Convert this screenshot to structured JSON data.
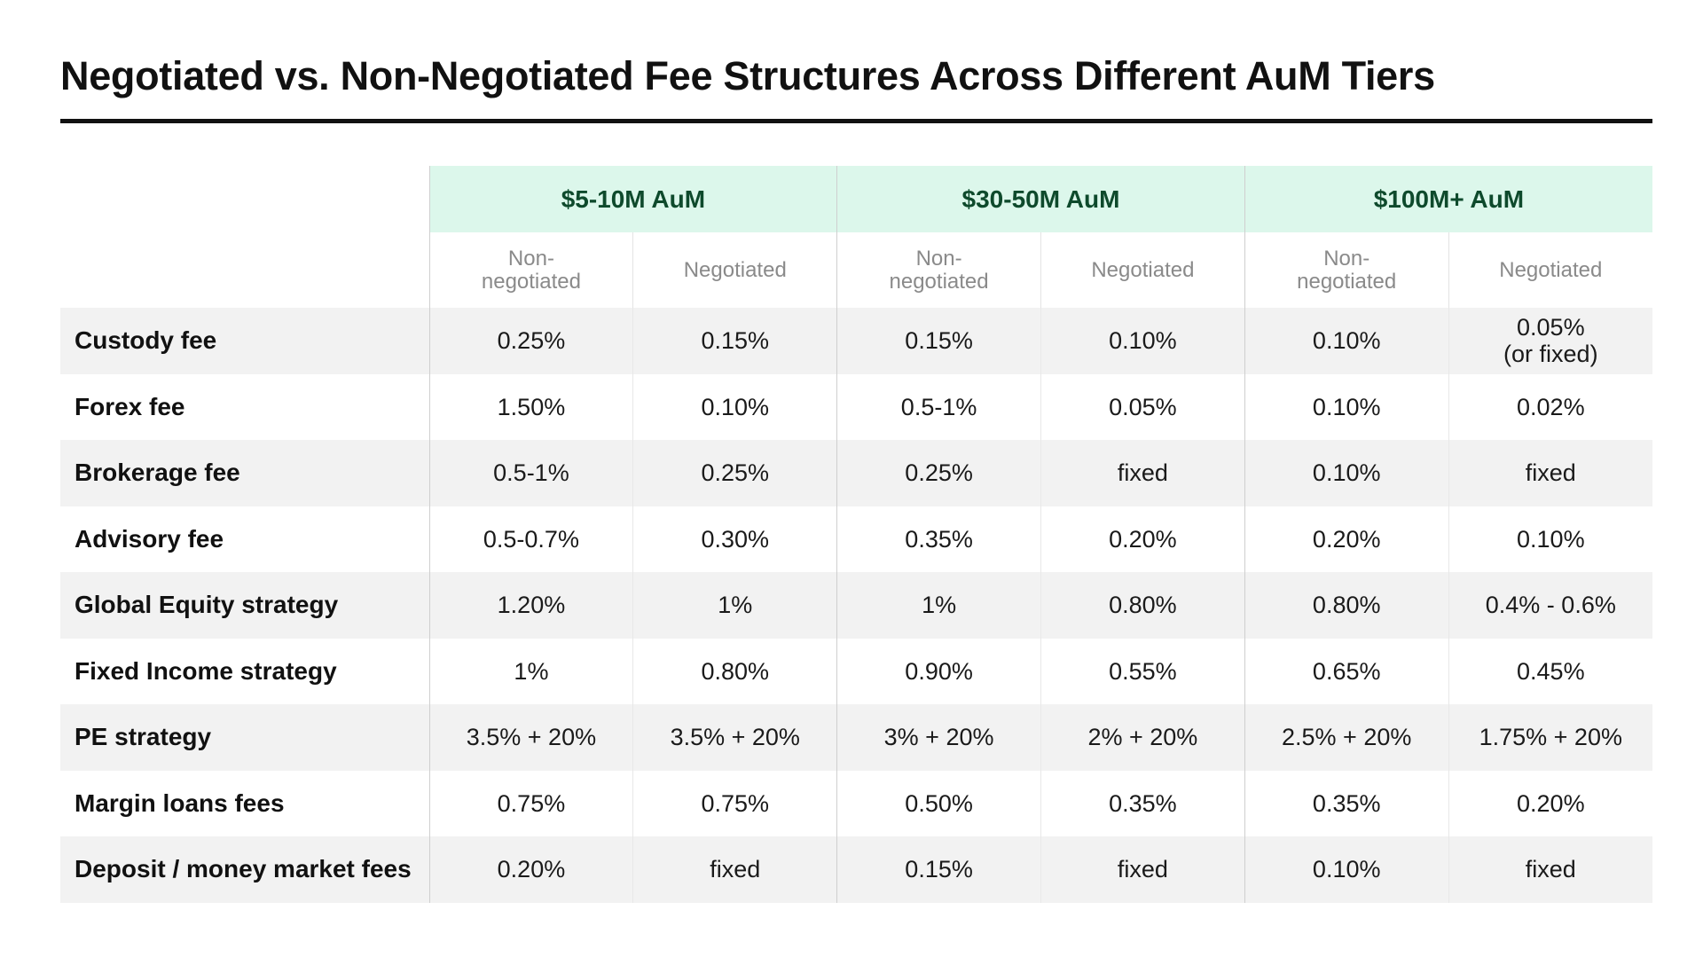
{
  "title": "Negotiated vs. Non-Negotiated Fee Structures Across Different AuM Tiers",
  "colors": {
    "tier_header_bg": "#dcf7eb",
    "tier_header_text": "#0e4a2c",
    "shaded_row": "#f2f2f2"
  },
  "tiers": [
    {
      "label": "$5-10M AuM"
    },
    {
      "label": "$30-50M AuM"
    },
    {
      "label": "$100M+ AuM"
    }
  ],
  "subheaders": {
    "non_negotiated_line1": "Non-",
    "non_negotiated_line2": "negotiated",
    "negotiated": "Negotiated"
  },
  "rows": [
    {
      "label": "Custody fee",
      "values": [
        "0.25%",
        "0.15%",
        "0.15%",
        "0.10%",
        "0.10%",
        "0.05%"
      ],
      "note_last": "(or fixed)"
    },
    {
      "label": "Forex fee",
      "values": [
        "1.50%",
        "0.10%",
        "0.5-1%",
        "0.05%",
        "0.10%",
        "0.02%"
      ]
    },
    {
      "label": "Brokerage fee",
      "values": [
        "0.5-1%",
        "0.25%",
        "0.25%",
        "fixed",
        "0.10%",
        "fixed"
      ]
    },
    {
      "label": "Advisory fee",
      "values": [
        "0.5-0.7%",
        "0.30%",
        "0.35%",
        "0.20%",
        "0.20%",
        "0.10%"
      ]
    },
    {
      "label": "Global Equity strategy",
      "values": [
        "1.20%",
        "1%",
        "1%",
        "0.80%",
        "0.80%",
        "0.4% - 0.6%"
      ]
    },
    {
      "label": "Fixed Income strategy",
      "values": [
        "1%",
        "0.80%",
        "0.90%",
        "0.55%",
        "0.65%",
        "0.45%"
      ]
    },
    {
      "label": "PE strategy",
      "values": [
        "3.5% + 20%",
        "3.5% + 20%",
        "3% + 20%",
        "2% + 20%",
        "2.5% + 20%",
        "1.75% + 20%"
      ]
    },
    {
      "label": "Margin loans fees",
      "values": [
        "0.75%",
        "0.75%",
        "0.50%",
        "0.35%",
        "0.35%",
        "0.20%"
      ]
    },
    {
      "label": "Deposit / money market fees",
      "values": [
        "0.20%",
        "fixed",
        "0.15%",
        "fixed",
        "0.10%",
        "fixed"
      ]
    }
  ]
}
